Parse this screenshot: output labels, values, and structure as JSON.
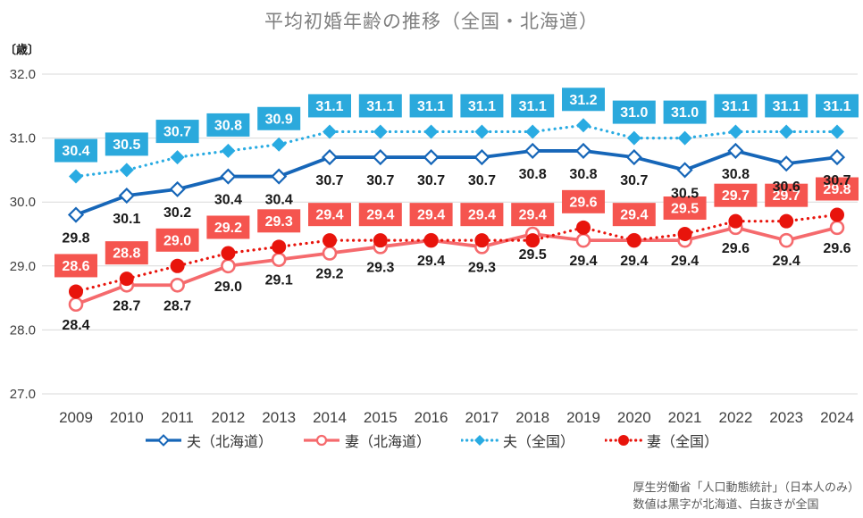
{
  "chart": {
    "title": "平均初婚年齢の推移（全国・北海道）",
    "y_unit": "〔歳〕",
    "source_line1": "厚生労働省「人口動態統計」（日本人のみ）",
    "source_line2": "数値は黒字が北海道、白抜きが全国"
  },
  "chart_data": {
    "type": "line",
    "title": "平均初婚年齢の推移（全国・北海道）",
    "xlabel": "",
    "ylabel": "歳",
    "ylim": [
      27.0,
      32.0
    ],
    "y_ticks": [
      32.0,
      31.0,
      30.0,
      29.0,
      28.0,
      27.0
    ],
    "grid": "horizontal",
    "legend_position": "bottom",
    "categories": [
      2009,
      2010,
      2011,
      2012,
      2013,
      2014,
      2015,
      2016,
      2017,
      2018,
      2019,
      2020,
      2021,
      2022,
      2023,
      2024
    ],
    "series": [
      {
        "id": "husband-hokkaido",
        "name": "夫（北海道）",
        "color": "#1666b8",
        "line": "solid",
        "marker": "diamond-open",
        "label_style": "black-below",
        "values": [
          29.8,
          30.1,
          30.2,
          30.4,
          30.4,
          30.7,
          30.7,
          30.7,
          30.7,
          30.8,
          30.8,
          30.7,
          30.5,
          30.8,
          30.6,
          30.7
        ]
      },
      {
        "id": "wife-hokkaido",
        "name": "妻（北海道）",
        "color": "#f56a6d",
        "line": "solid",
        "marker": "circle-open",
        "label_style": "black-below",
        "values": [
          28.4,
          28.7,
          28.7,
          29.0,
          29.1,
          29.2,
          29.3,
          29.4,
          29.3,
          29.5,
          29.4,
          29.4,
          29.4,
          29.6,
          29.4,
          29.6
        ]
      },
      {
        "id": "husband-national",
        "name": "夫（全国）",
        "color": "#29abe2",
        "line": "dotted",
        "marker": "diamond-filled",
        "label_style": "box-above",
        "box_color": "#2ba9dc",
        "values": [
          30.4,
          30.5,
          30.7,
          30.8,
          30.9,
          31.1,
          31.1,
          31.1,
          31.1,
          31.1,
          31.2,
          31.0,
          31.0,
          31.1,
          31.1,
          31.1
        ]
      },
      {
        "id": "wife-national",
        "name": "妻（全国）",
        "color": "#e8140c",
        "line": "dotted",
        "marker": "circle-filled",
        "label_style": "box-above",
        "box_color": "#f5554f",
        "values": [
          28.6,
          28.8,
          29.0,
          29.2,
          29.3,
          29.4,
          29.4,
          29.4,
          29.4,
          29.4,
          29.6,
          29.4,
          29.5,
          29.7,
          29.7,
          29.8
        ]
      }
    ],
    "colors": {
      "gridline": "#d9d9d9",
      "axis_text": "#3f3f3f",
      "black_label": "#1a1a1a",
      "title_text": "#7f7f7f",
      "source_text": "#595959"
    }
  }
}
